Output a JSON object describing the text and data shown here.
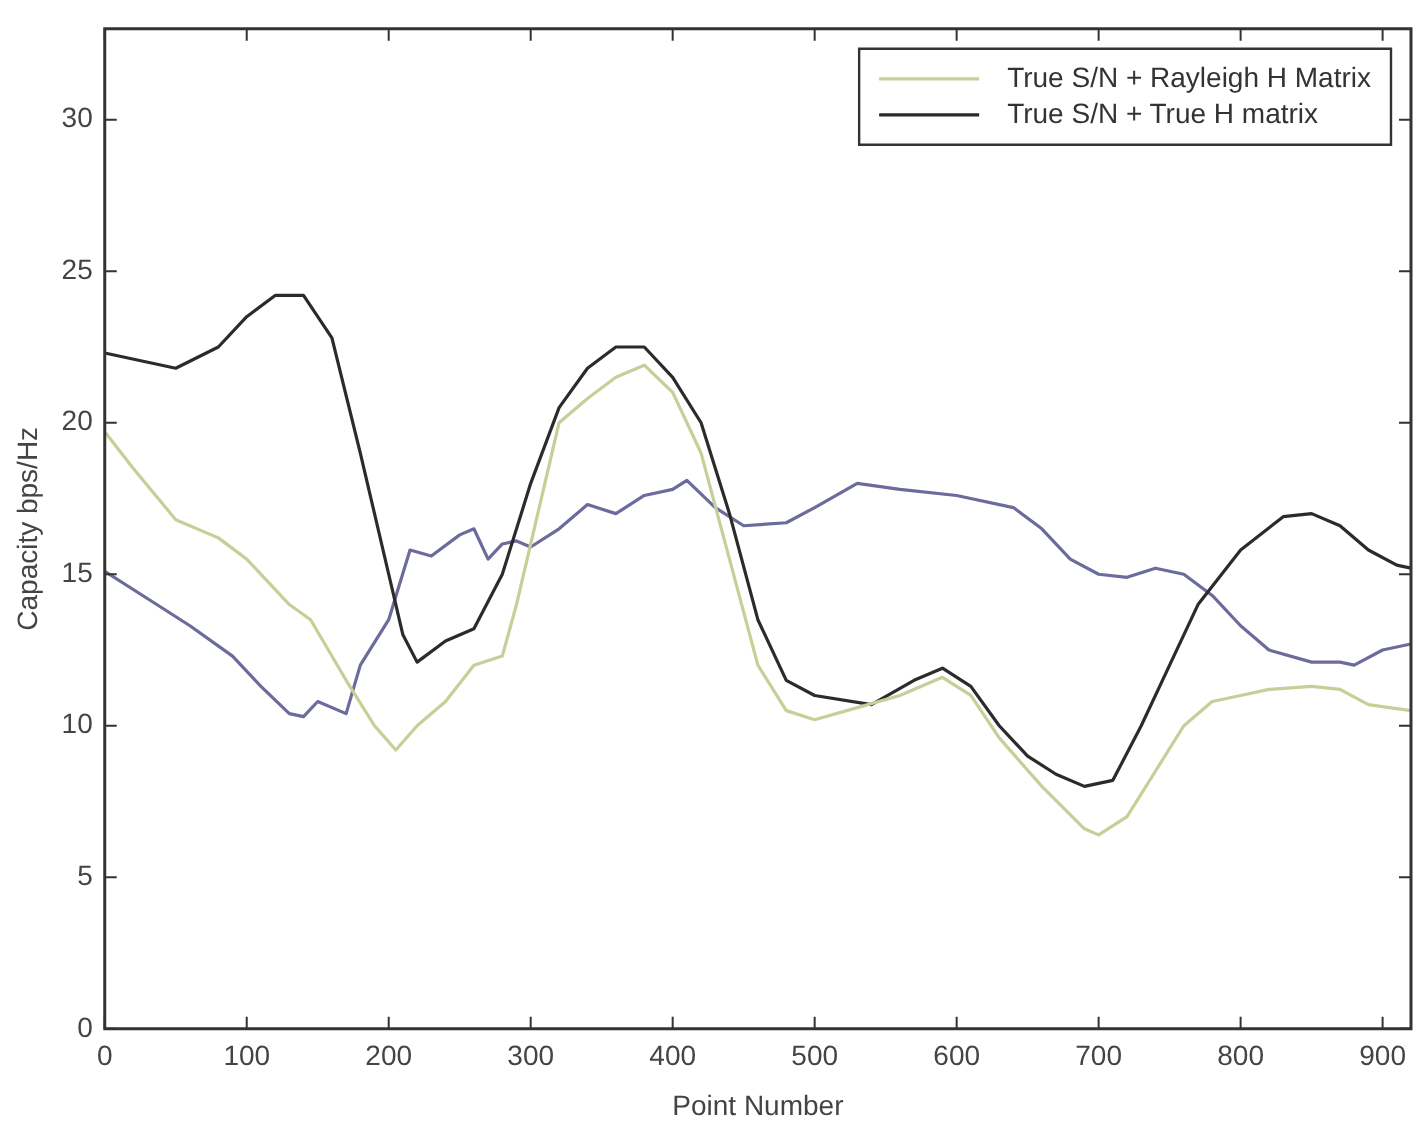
{
  "chart_data": {
    "type": "line",
    "xlabel": "Point Number",
    "ylabel": "Capacity bps/Hz",
    "xlim": [
      0,
      920
    ],
    "xticks": [
      0,
      100,
      200,
      300,
      400,
      500,
      600,
      700,
      800,
      900
    ],
    "ylim": [
      0,
      33
    ],
    "yticks": [
      0,
      5,
      10,
      15,
      20,
      25,
      30
    ],
    "grid": false,
    "legend": "top right",
    "marker": "none",
    "line_style": "solid",
    "series": [
      {
        "name": "True S/N + Rayleigh H Matrix",
        "color": "#c5cf98",
        "x": [
          0,
          20,
          50,
          80,
          100,
          130,
          145,
          170,
          190,
          205,
          220,
          240,
          260,
          280,
          290,
          300,
          320,
          340,
          360,
          380,
          400,
          420,
          440,
          460,
          480,
          500,
          530,
          560,
          590,
          610,
          630,
          660,
          690,
          700,
          720,
          740,
          760,
          780,
          800,
          820,
          850,
          870,
          890,
          920
        ],
        "values": [
          19.7,
          18.5,
          16.8,
          16.2,
          15.5,
          14,
          13.5,
          11.5,
          10,
          9.2,
          10,
          10.8,
          12,
          12.3,
          14,
          16,
          20,
          20.8,
          21.5,
          21.9,
          21,
          19,
          15.5,
          12,
          10.5,
          10.2,
          10.6,
          11,
          11.6,
          11,
          9.6,
          8,
          6.6,
          6.4,
          7,
          8.5,
          10,
          10.8,
          11,
          11.2,
          11.3,
          11.2,
          10.7,
          10.5
        ]
      },
      {
        "name": "True S/N + True H matrix",
        "color": "#2b2b2b",
        "x": [
          0,
          50,
          80,
          100,
          120,
          140,
          160,
          180,
          200,
          210,
          220,
          240,
          260,
          280,
          300,
          320,
          340,
          360,
          380,
          400,
          420,
          440,
          460,
          480,
          500,
          540,
          570,
          590,
          610,
          630,
          650,
          670,
          690,
          710,
          730,
          750,
          770,
          800,
          830,
          850,
          870,
          890,
          910,
          920
        ],
        "values": [
          22.3,
          21.8,
          22.5,
          23.5,
          24.2,
          24.2,
          22.8,
          19,
          15,
          13,
          12.1,
          12.8,
          13.2,
          15,
          18,
          20.5,
          21.8,
          22.5,
          22.5,
          21.5,
          20,
          17,
          13.5,
          11.5,
          11,
          10.7,
          11.5,
          11.9,
          11.3,
          10,
          9,
          8.4,
          8,
          8.2,
          10,
          12,
          14,
          15.8,
          16.9,
          17,
          16.6,
          15.8,
          15.3,
          15.2
        ]
      },
      {
        "color": "#6b6b9c",
        "x": [
          0,
          30,
          60,
          90,
          110,
          130,
          140,
          150,
          170,
          180,
          200,
          215,
          230,
          250,
          260,
          270,
          280,
          290,
          300,
          320,
          340,
          360,
          380,
          400,
          410,
          430,
          450,
          480,
          500,
          530,
          560,
          600,
          640,
          660,
          680,
          700,
          720,
          740,
          760,
          780,
          800,
          820,
          850,
          870,
          880,
          900,
          920
        ],
        "values": [
          15.1,
          14.2,
          13.3,
          12.3,
          11.3,
          10.4,
          10.3,
          10.8,
          10.4,
          12,
          13.5,
          15.8,
          15.6,
          16.3,
          16.5,
          15.5,
          16,
          16.1,
          15.9,
          16.5,
          17.3,
          17,
          17.6,
          17.8,
          18.1,
          17.2,
          16.6,
          16.7,
          17.2,
          18,
          17.8,
          17.6,
          17.2,
          16.5,
          15.5,
          15,
          14.9,
          15.2,
          15,
          14.3,
          13.3,
          12.5,
          12.1,
          12.1,
          12,
          12.5,
          12.7
        ]
      }
    ]
  }
}
